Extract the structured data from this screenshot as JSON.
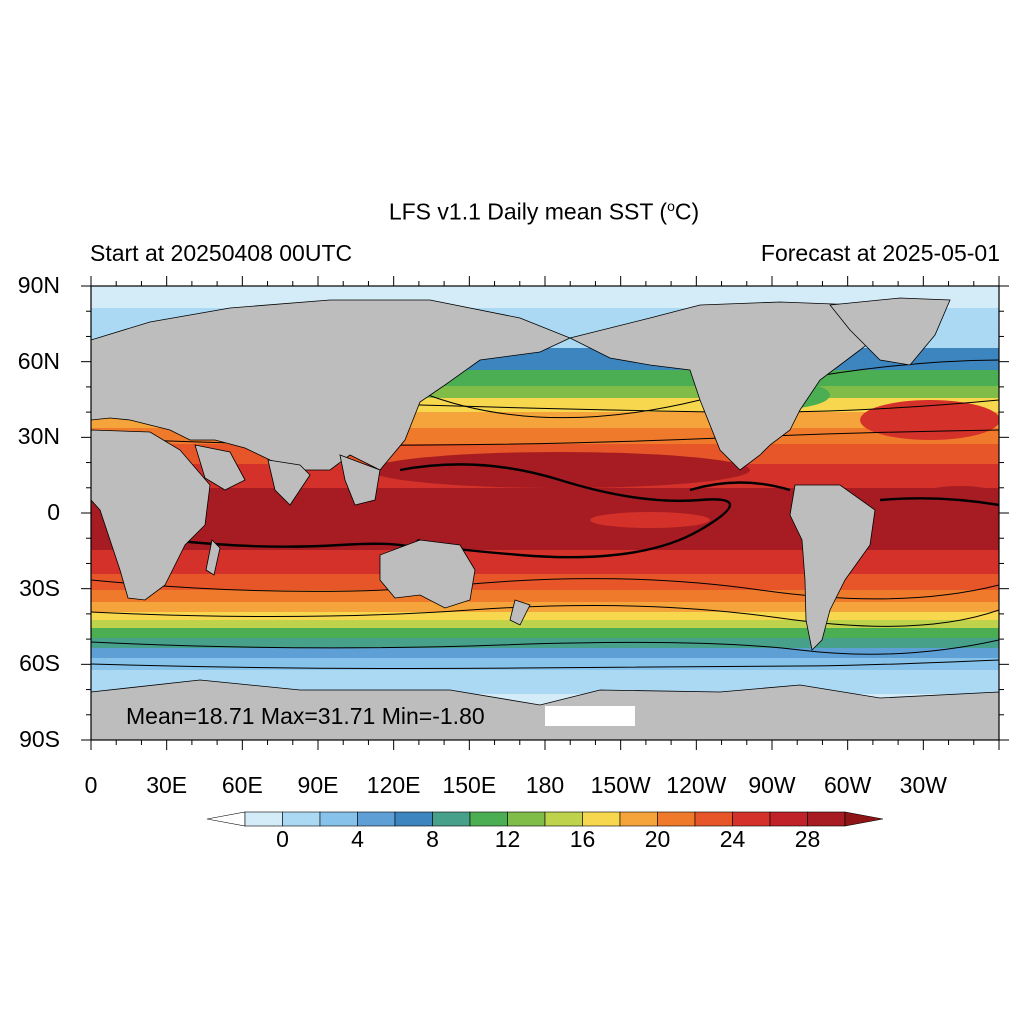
{
  "title_prefix": "LFS v1.1 Daily mean SST (",
  "title_sup": "o",
  "title_suffix": "C)",
  "left_subtitle": "Start at 20250408 00UTC",
  "right_subtitle": "Forecast at 2025-05-01",
  "stats": "Mean=18.71  Max=31.71  Min=-1.80",
  "lat_labels": [
    "90N",
    "60N",
    "30N",
    "0",
    "30S",
    "60S",
    "90S"
  ],
  "lon_labels": [
    "0",
    "30E",
    "60E",
    "90E",
    "120E",
    "150E",
    "180",
    "150W",
    "120W",
    "90W",
    "60W",
    "30W"
  ],
  "colorbar": {
    "tick_labels": [
      "0",
      "4",
      "8",
      "12",
      "16",
      "20",
      "24",
      "28"
    ],
    "colors": [
      "#ffffff",
      "#d4ecf8",
      "#abd9f4",
      "#86c2ea",
      "#5ea0d6",
      "#3c85bf",
      "#46a08a",
      "#4cae52",
      "#80bd48",
      "#bfd24c",
      "#f6d74e",
      "#f4a43a",
      "#ef7a2c",
      "#e65628",
      "#d3312a",
      "#c0222a",
      "#a71c22",
      "#8e1416"
    ]
  },
  "map_colors": {
    "land": "#bdbdbd",
    "sea_ice": "#d4ecf8",
    "ocean_border": "#000000"
  }
}
